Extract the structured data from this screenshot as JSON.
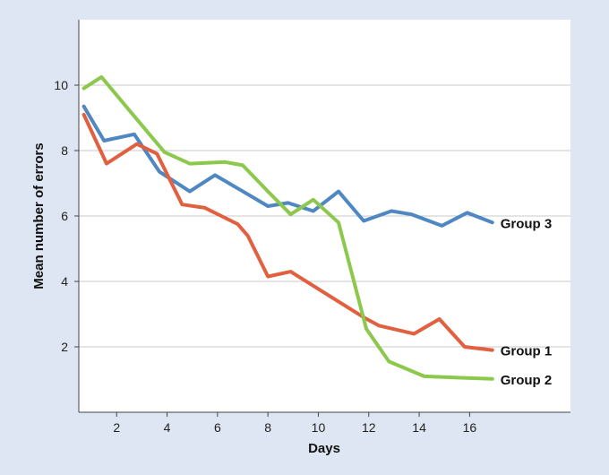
{
  "chart_data": {
    "type": "line",
    "title": "",
    "xlabel": "Days",
    "ylabel": "Mean number of errors",
    "xlim": [
      0.5,
      20
    ],
    "ylim": [
      0,
      12
    ],
    "xticks": [
      2,
      4,
      6,
      8,
      10,
      12,
      14,
      16
    ],
    "yticks": [
      2,
      4,
      6,
      8,
      10
    ],
    "grid": "horizontal",
    "legend": "end-of-line labels",
    "series": [
      {
        "name": "Group 3",
        "color": "#4f87c3",
        "points": [
          [
            0.7,
            9.35
          ],
          [
            1.5,
            8.3
          ],
          [
            2.7,
            8.5
          ],
          [
            3.7,
            7.35
          ],
          [
            4.9,
            6.75
          ],
          [
            5.9,
            7.25
          ],
          [
            6.9,
            6.8
          ],
          [
            8.0,
            6.3
          ],
          [
            8.8,
            6.4
          ],
          [
            9.8,
            6.15
          ],
          [
            10.8,
            6.75
          ],
          [
            11.8,
            5.85
          ],
          [
            12.9,
            6.15
          ],
          [
            13.7,
            6.05
          ],
          [
            14.9,
            5.7
          ],
          [
            15.9,
            6.1
          ],
          [
            16.9,
            5.8
          ]
        ]
      },
      {
        "name": "Group 1",
        "color": "#e06040",
        "points": [
          [
            0.7,
            9.1
          ],
          [
            1.6,
            7.6
          ],
          [
            2.8,
            8.2
          ],
          [
            3.6,
            7.9
          ],
          [
            4.6,
            6.35
          ],
          [
            5.5,
            6.25
          ],
          [
            6.8,
            5.75
          ],
          [
            7.2,
            5.4
          ],
          [
            8.0,
            4.15
          ],
          [
            8.9,
            4.3
          ],
          [
            11.8,
            2.9
          ],
          [
            12.4,
            2.65
          ],
          [
            13.8,
            2.4
          ],
          [
            14.8,
            2.85
          ],
          [
            15.8,
            2.0
          ],
          [
            16.9,
            1.9
          ]
        ]
      },
      {
        "name": "Group 2",
        "color": "#8cc84b",
        "points": [
          [
            0.7,
            9.9
          ],
          [
            1.4,
            10.25
          ],
          [
            2.7,
            9.05
          ],
          [
            3.9,
            7.95
          ],
          [
            4.9,
            7.6
          ],
          [
            6.3,
            7.65
          ],
          [
            7.0,
            7.55
          ],
          [
            8.0,
            6.75
          ],
          [
            8.9,
            6.05
          ],
          [
            9.8,
            6.5
          ],
          [
            10.8,
            5.8
          ],
          [
            11.9,
            2.55
          ],
          [
            12.8,
            1.55
          ],
          [
            14.2,
            1.1
          ],
          [
            16.9,
            1.02
          ]
        ]
      }
    ]
  }
}
